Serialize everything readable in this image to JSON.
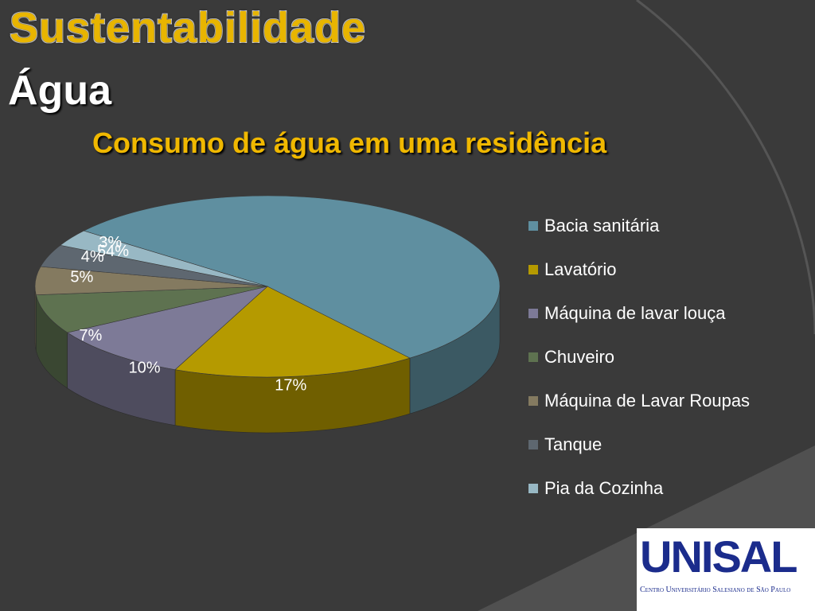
{
  "slide": {
    "title": "Sustentabilidade",
    "subtitle": "Água",
    "logo_text": "UNISAL",
    "logo_caption": "Centro Universitário Salesiano de São Paulo"
  },
  "chart_data": {
    "type": "pie",
    "title": "Consumo de água em uma residência",
    "categories": [
      "Bacia sanitária",
      "Lavatório",
      "Máquina de lavar louça",
      "Chuveiro",
      "Máquina de Lavar Roupas",
      "Tanque",
      "Pia da Cozinha"
    ],
    "values": [
      54,
      17,
      10,
      7,
      5,
      4,
      3
    ],
    "labels": [
      "54%",
      "17%",
      "10%",
      "7%",
      "5%",
      "4%",
      "3%"
    ],
    "colors": [
      "#5f8fa0",
      "#b59a00",
      "#7d7a97",
      "#5e7250",
      "#847a60",
      "#5e6770",
      "#98b8c4"
    ],
    "legend_position": "right",
    "style": "3d"
  }
}
